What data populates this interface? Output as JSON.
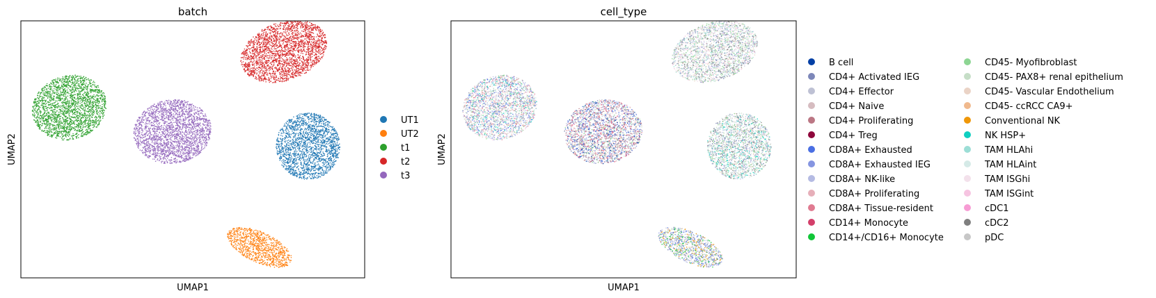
{
  "chart_data": [
    {
      "type": "scatter",
      "title": "batch",
      "xlabel": "UMAP1",
      "ylabel": "UMAP2",
      "grid": false,
      "ticks": false,
      "legend_placement": "right",
      "series": [
        {
          "name": "UT1",
          "color": "#1f77b4",
          "x": 14.2,
          "y": 3.2
        },
        {
          "name": "UT2",
          "color": "#ff7f0e",
          "x": 11.8,
          "y": -3.1
        },
        {
          "name": "t1",
          "color": "#2ca02c",
          "x": 2.4,
          "y": 5.6
        },
        {
          "name": "t2",
          "color": "#d62728",
          "x": 13.0,
          "y": 9.1
        },
        {
          "name": "t3",
          "color": "#9467bd",
          "x": 7.5,
          "y": 4.1
        }
      ]
    },
    {
      "type": "scatter",
      "title": "cell_type",
      "xlabel": "UMAP1",
      "ylabel": "UMAP2",
      "grid": false,
      "ticks": false,
      "legend_placement": "right",
      "legend": [
        {
          "name": "B cell",
          "color": "#023fa5"
        },
        {
          "name": "CD4+ Activated IEG",
          "color": "#7d87b9"
        },
        {
          "name": "CD4+ Effector",
          "color": "#bec1d4"
        },
        {
          "name": "CD4+ Naive",
          "color": "#d6bcc0"
        },
        {
          "name": "CD4+ Proliferating",
          "color": "#bb7784"
        },
        {
          "name": "CD4+ Treg",
          "color": "#8e063b"
        },
        {
          "name": "CD8A+ Exhausted",
          "color": "#4a6fe3"
        },
        {
          "name": "CD8A+ Exhausted IEG",
          "color": "#8595e1"
        },
        {
          "name": "CD8A+ NK-like",
          "color": "#b5bbe3"
        },
        {
          "name": "CD8A+ Proliferating",
          "color": "#e6afb9"
        },
        {
          "name": "CD8A+ Tissue-resident",
          "color": "#e07b91"
        },
        {
          "name": "CD14+ Monocyte",
          "color": "#d33f6a"
        },
        {
          "name": "CD14+/CD16+ Monocyte",
          "color": "#11c638"
        },
        {
          "name": "CD45- Myofibroblast",
          "color": "#8dd593"
        },
        {
          "name": "CD45- PAX8+ renal epithelium",
          "color": "#c6dec7"
        },
        {
          "name": "CD45- Vascular Endothelium",
          "color": "#ead3c6"
        },
        {
          "name": "CD45- ccRCC CA9+",
          "color": "#f0b98d"
        },
        {
          "name": "Conventional NK",
          "color": "#ef9708"
        },
        {
          "name": "NK HSP+",
          "color": "#0fcfc0"
        },
        {
          "name": "TAM HLAhi",
          "color": "#9cded6"
        },
        {
          "name": "TAM HLAint",
          "color": "#d5eae7"
        },
        {
          "name": "TAM ISGhi",
          "color": "#f3e1eb"
        },
        {
          "name": "TAM ISGint",
          "color": "#f6c4e1"
        },
        {
          "name": "cDC1",
          "color": "#f79cd4"
        },
        {
          "name": "cDC2",
          "color": "#7f7f7f"
        },
        {
          "name": "pDC",
          "color": "#c7c7c7"
        }
      ]
    }
  ]
}
